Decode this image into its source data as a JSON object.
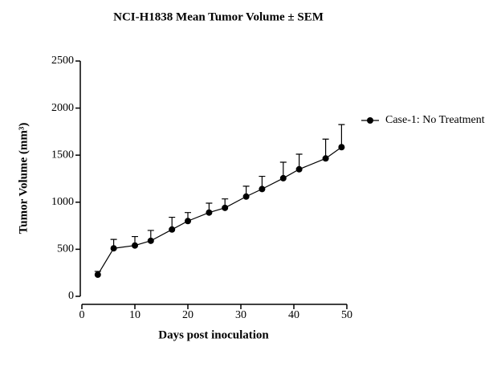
{
  "chart_data": {
    "type": "line",
    "title": "NCI-H1838 Mean Tumor Volume ± SEM",
    "x_label": "Days post inoculation",
    "y_label": "Tumor Volume (mm³)",
    "x": [
      3,
      6,
      10,
      13,
      17,
      20,
      24,
      27,
      31,
      34,
      38,
      41,
      46,
      49
    ],
    "series": [
      {
        "name": "Case-1: No Treatment",
        "color": "#000000",
        "values": [
          230,
          510,
          540,
          590,
          710,
          800,
          890,
          940,
          1060,
          1140,
          1255,
          1350,
          1465,
          1585
        ],
        "errors": [
          35,
          95,
          95,
          110,
          130,
          90,
          100,
          95,
          110,
          135,
          170,
          160,
          205,
          240
        ]
      }
    ],
    "xlim": [
      0,
      50
    ],
    "xticks": [
      0,
      10,
      20,
      30,
      40,
      50
    ],
    "ylim": [
      0,
      2500
    ],
    "yticks": [
      0,
      500,
      1000,
      1500,
      2000,
      2500
    ],
    "grid": false,
    "legend": "right"
  }
}
